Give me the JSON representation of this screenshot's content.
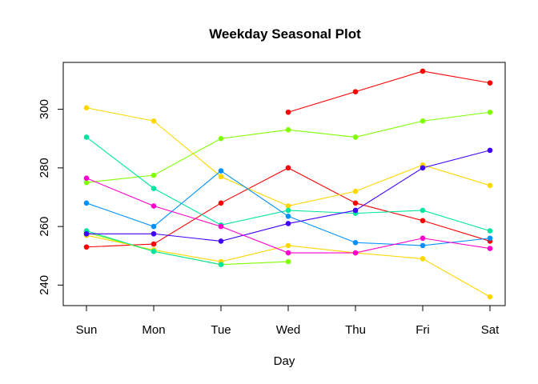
{
  "chart_data": {
    "type": "line",
    "title": "Weekday Seasonal Plot",
    "xlabel": "Day",
    "ylabel": "",
    "categories": [
      "Sun",
      "Mon",
      "Tue",
      "Wed",
      "Thu",
      "Fri",
      "Sat"
    ],
    "ylim": [
      233,
      316
    ],
    "yticks": [
      240,
      260,
      280,
      300
    ],
    "grid": false,
    "legend": "none",
    "series": [
      {
        "color": "#FF0000",
        "values": [
          253,
          254,
          268,
          280,
          268,
          262,
          255
        ]
      },
      {
        "color": "#FF0000",
        "values": [
          null,
          null,
          null,
          299,
          306,
          313,
          309
        ]
      },
      {
        "color": "#80FF00",
        "values": [
          275,
          277.5,
          290,
          293,
          290.5,
          296,
          299
        ]
      },
      {
        "color": "#80FF00",
        "values": [
          258,
          251.5,
          247,
          248,
          null,
          null,
          null
        ]
      },
      {
        "color": "#FFD700",
        "values": [
          300.5,
          296,
          277,
          267,
          272,
          281,
          274
        ]
      },
      {
        "color": "#FFD700",
        "values": [
          257,
          252,
          248,
          253.5,
          251,
          249,
          236
        ]
      },
      {
        "color": "#00E5A0",
        "values": [
          290.5,
          273,
          260.5,
          265.5,
          264.5,
          265.5,
          258.5
        ]
      },
      {
        "color": "#00E5A0",
        "values": [
          258.5,
          251.5,
          247,
          null,
          null,
          null,
          null
        ]
      },
      {
        "color": "#0090FF",
        "values": [
          268,
          260,
          279,
          263.5,
          254.5,
          253.5,
          256
        ]
      },
      {
        "color": "#4000FF",
        "values": [
          257.5,
          257.5,
          255,
          261,
          265.5,
          280,
          286
        ]
      },
      {
        "color": "#FF00CC",
        "values": [
          276.5,
          267,
          260,
          251,
          251,
          256,
          252.5
        ]
      }
    ]
  }
}
